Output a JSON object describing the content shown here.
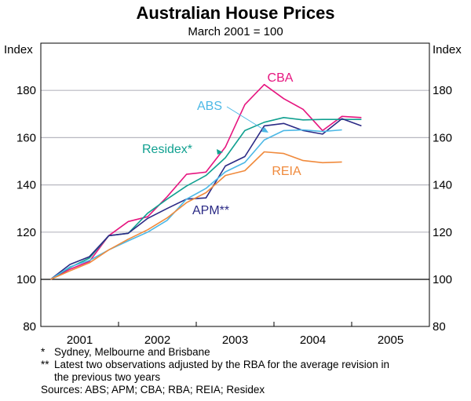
{
  "title": "Australian House Prices",
  "subtitle": "March 2001 = 100",
  "notes": {
    "star_mark": "*",
    "star": "Sydney, Melbourne and Brisbane",
    "dstar_mark": "**",
    "dstar_1": "Latest two observations adjusted by the RBA for the average revision in",
    "dstar_2": "the previous two years",
    "sources": "Sources: ABS; APM; CBA; RBA; REIA; Residex"
  },
  "chart_data": {
    "type": "line",
    "title": "Australian House Prices",
    "subtitle": "March 2001 = 100",
    "ylabel_left": "Index",
    "ylabel_right": "Index",
    "ylim": [
      80,
      190
    ],
    "yticks": [
      80,
      100,
      120,
      140,
      160,
      180
    ],
    "year_labels": [
      "2001",
      "2002",
      "2003",
      "2004",
      "2005"
    ],
    "x_quarters": [
      "Mar-01",
      "Jun-01",
      "Sep-01",
      "Dec-01",
      "Mar-02",
      "Jun-02",
      "Sep-02",
      "Dec-02",
      "Mar-03",
      "Jun-03",
      "Sep-03",
      "Dec-03",
      "Mar-04",
      "Jun-04",
      "Sep-04",
      "Dec-04",
      "Mar-05"
    ],
    "grid": true,
    "series": [
      {
        "name": "CBA",
        "label": "CBA",
        "color": "#e6157f",
        "values": [
          100,
          104.3,
          107.6,
          118.5,
          124.5,
          126.5,
          135,
          144.5,
          145.4,
          156,
          174,
          182.5,
          176.5,
          172,
          163,
          169,
          168.5
        ]
      },
      {
        "name": "Residex",
        "label": "Residex*",
        "color": "#10a090",
        "values": [
          100,
          105,
          109,
          118.5,
          119.5,
          128,
          134,
          139.5,
          144,
          151.5,
          163,
          166.5,
          168.5,
          167.5,
          167.7,
          167.7,
          167.7
        ]
      },
      {
        "name": "APM",
        "label": "APM**",
        "color": "#2b2a85",
        "values": [
          100,
          106.3,
          109.6,
          118.5,
          119.5,
          125.8,
          130,
          134,
          134.5,
          148,
          152,
          165,
          166,
          163,
          161.5,
          168,
          165
        ]
      },
      {
        "name": "ABS",
        "label": "ABS",
        "color": "#4cb8e6",
        "values": [
          100,
          105.3,
          108,
          112.5,
          116.3,
          120,
          125,
          134,
          138.5,
          145.5,
          149.5,
          159,
          163,
          163.3,
          162.6,
          163.3
        ]
      },
      {
        "name": "REIA",
        "label": "REIA",
        "color": "#f08a3c",
        "values": [
          100,
          103.6,
          107,
          112.5,
          117,
          121,
          126,
          132.5,
          136.7,
          144,
          146,
          154,
          153.3,
          150.3,
          149.4,
          149.7
        ]
      }
    ]
  }
}
